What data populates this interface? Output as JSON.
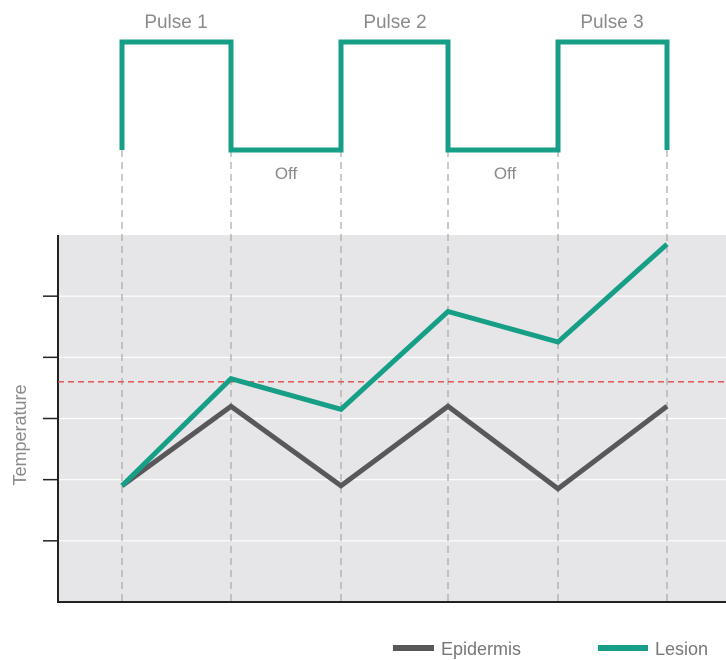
{
  "pulse_labels": [
    "Pulse 1",
    "Pulse 2",
    "Pulse 3"
  ],
  "off_labels": [
    "Off",
    "Off"
  ],
  "ylabel": "Temperature",
  "colors": {
    "lesion": "#169f86",
    "epidermis": "#58585a",
    "threshold": "#e0484a",
    "plot_bg": "#e6e6e8",
    "guide": "#a6a6a6"
  },
  "chart_data": {
    "type": "line",
    "title": "",
    "xlabel": "",
    "ylabel": "Temperature",
    "x": [
      0,
      1,
      2,
      3,
      4,
      5
    ],
    "ylim": [
      0,
      6
    ],
    "grid": true,
    "threshold_y": 3.6,
    "series": [
      {
        "name": "Epidermis",
        "color": "#58585a",
        "values": [
          1.9,
          3.2,
          1.9,
          3.2,
          1.85,
          3.2
        ]
      },
      {
        "name": "Lesion",
        "color": "#169f86",
        "values": [
          1.9,
          3.65,
          3.15,
          4.75,
          4.25,
          5.85
        ]
      }
    ],
    "legend": "bottom-right"
  }
}
